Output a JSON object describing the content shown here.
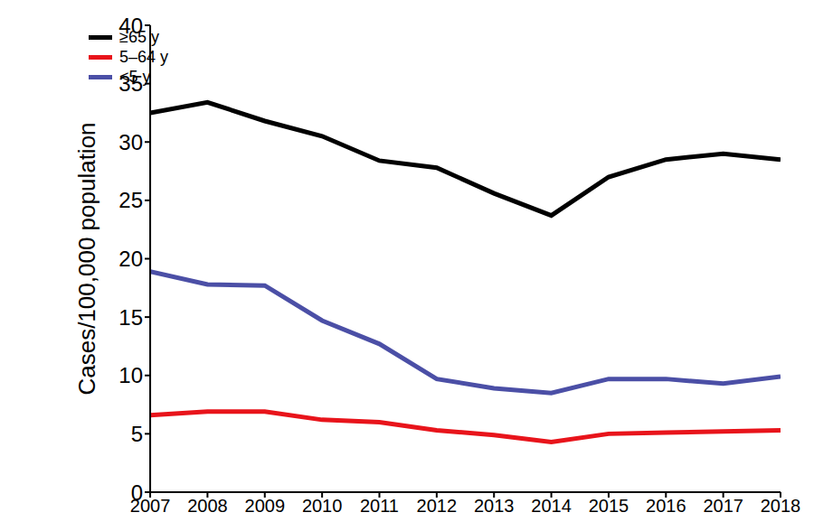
{
  "chart_data": {
    "type": "line",
    "y_label": "Cases/100,000 population",
    "x": [
      2007,
      2008,
      2009,
      2010,
      2011,
      2012,
      2013,
      2014,
      2015,
      2016,
      2017,
      2018
    ],
    "xlim": [
      2007,
      2018
    ],
    "xticks": [
      2007,
      2008,
      2009,
      2010,
      2011,
      2012,
      2013,
      2014,
      2015,
      2016,
      2017,
      2018
    ],
    "ylim": [
      0,
      40
    ],
    "yticks": [
      0,
      5,
      10,
      15,
      20,
      25,
      30,
      35,
      40
    ],
    "grid": false,
    "legend": "upper left",
    "series": [
      {
        "name": "≥65 y",
        "color": "#000000",
        "values": [
          32.5,
          33.4,
          31.8,
          30.5,
          28.4,
          27.8,
          25.6,
          23.7,
          27.0,
          28.5,
          29.0,
          28.5
        ]
      },
      {
        "name": "5–64 y",
        "color": "#e8141b",
        "values": [
          6.6,
          6.9,
          6.9,
          6.2,
          6.0,
          5.3,
          4.9,
          4.3,
          5.0,
          5.1,
          5.2,
          5.3
        ]
      },
      {
        "name": "<5 y",
        "color": "#4b4fa6",
        "values": [
          18.9,
          17.8,
          17.7,
          14.7,
          12.7,
          9.7,
          8.9,
          8.5,
          9.7,
          9.7,
          9.3,
          9.9
        ]
      }
    ]
  }
}
